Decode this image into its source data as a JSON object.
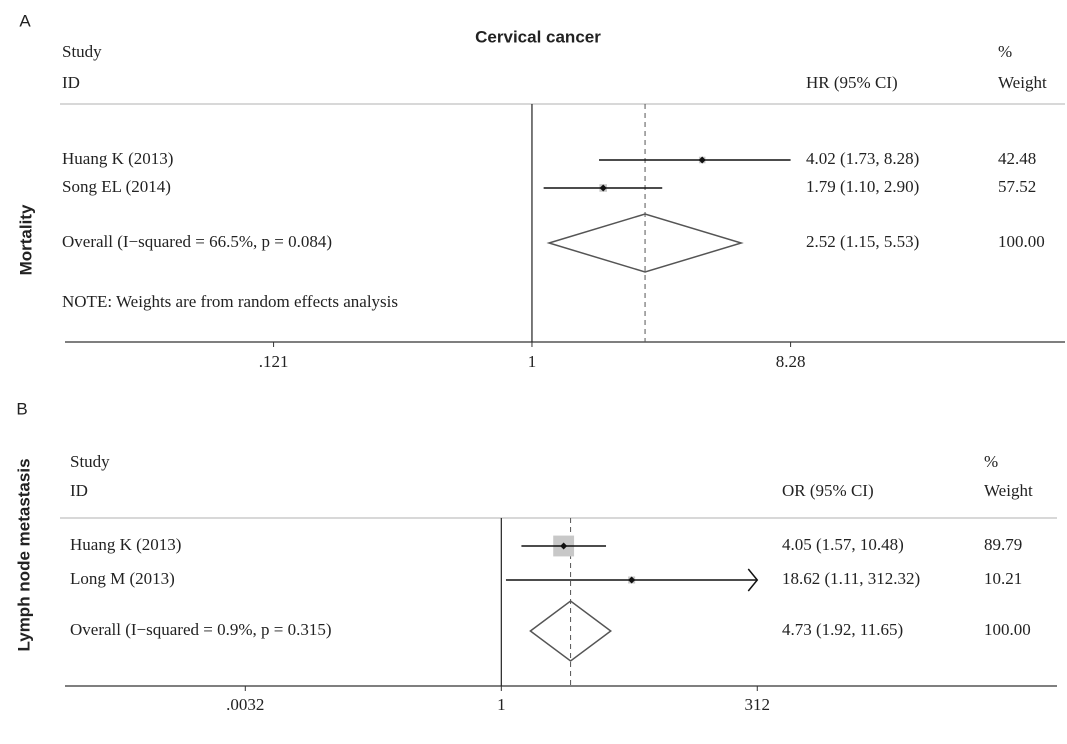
{
  "chart_data": [
    {
      "type": "forest",
      "panel_label": "A",
      "title": "Cervical cancer",
      "y_label": "Mortality",
      "study_header": [
        "Study",
        "ID"
      ],
      "ci_header": "HR (95% CI)",
      "weight_header": [
        "%",
        "Weight"
      ],
      "studies": [
        {
          "name": "Huang K (2013)",
          "value": 4.02,
          "lower": 1.73,
          "upper": 8.28,
          "ci_label": "4.02 (1.73, 8.28)",
          "weight": 42.48,
          "weight_label": "42.48"
        },
        {
          "name": "Song EL (2014)",
          "value": 1.79,
          "lower": 1.1,
          "upper": 2.9,
          "ci_label": "1.79 (1.10, 2.90)",
          "weight": 57.52,
          "weight_label": "57.52"
        }
      ],
      "overall": {
        "name": "Overall  (I−squared = 66.5%, p = 0.084)",
        "value": 2.52,
        "lower": 1.15,
        "upper": 5.53,
        "ci_label": "2.52 (1.15, 5.53)",
        "weight": 100,
        "weight_label": "100.00"
      },
      "note": "NOTE: Weights are from random effects analysis",
      "log_scale": true,
      "xlim": [
        0.022,
        78
      ],
      "xticks": [
        {
          "value": 0.121,
          "label": ".121"
        },
        1,
        {
          "value": 8.28,
          "label": "8.28"
        }
      ]
    },
    {
      "type": "forest",
      "panel_label": "B",
      "y_label": "Lymph node metastasis",
      "study_header": [
        "Study",
        "ID"
      ],
      "ci_header": "OR (95% CI)",
      "weight_header": [
        "%",
        "Weight"
      ],
      "studies": [
        {
          "name": "Huang K (2013)",
          "value": 4.05,
          "lower": 1.57,
          "upper": 10.48,
          "ci_label": "4.05 (1.57, 10.48)",
          "weight": 89.79,
          "weight_label": "89.79"
        },
        {
          "name": "Long M (2013)",
          "value": 18.62,
          "lower": 1.11,
          "upper": 312.32,
          "ci_label": "18.62 (1.11, 312.32)",
          "weight": 10.21,
          "weight_label": "10.21"
        }
      ],
      "overall": {
        "name": "Overall  (I−squared = 0.9%, p = 0.315)",
        "value": 4.73,
        "lower": 1.92,
        "upper": 11.65,
        "ci_label": "4.73 (1.92, 11.65)",
        "weight": 100,
        "weight_label": "100.00"
      },
      "log_scale": true,
      "xlim": [
        5.6e-05,
        260000
      ],
      "xticks": [
        {
          "value": 0.0032,
          "label": ".0032"
        },
        1,
        312
      ]
    }
  ]
}
